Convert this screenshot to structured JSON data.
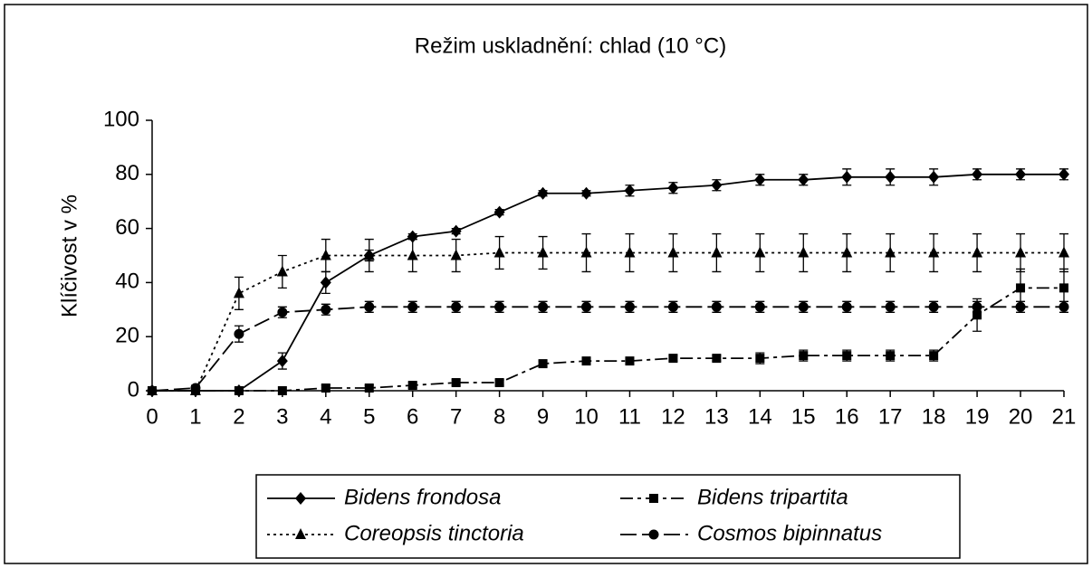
{
  "chart_data": {
    "type": "line",
    "title": "Režim uskladnění: chlad (10 °C)",
    "y_label": "Klíčivost v %",
    "x": [
      0,
      1,
      2,
      3,
      4,
      5,
      6,
      7,
      8,
      9,
      10,
      11,
      12,
      13,
      14,
      15,
      16,
      17,
      18,
      19,
      20,
      21
    ],
    "xlim": [
      0,
      21
    ],
    "xticks": [
      0,
      1,
      2,
      3,
      4,
      5,
      6,
      7,
      8,
      9,
      10,
      11,
      12,
      13,
      14,
      15,
      16,
      17,
      18,
      19,
      20,
      21
    ],
    "ylim": [
      0,
      100
    ],
    "yticks": [
      0,
      20,
      40,
      60,
      80,
      100
    ],
    "grid": false,
    "legend": "bottom",
    "series": [
      {
        "name": "Bidens frondosa",
        "color": "#000000",
        "dash": "solid",
        "marker": "diamond",
        "values": [
          0,
          0,
          0,
          11,
          40,
          50,
          57,
          59,
          66,
          73,
          73,
          74,
          75,
          76,
          78,
          78,
          79,
          79,
          79,
          80,
          80,
          80
        ],
        "errors": [
          0,
          0,
          1,
          3,
          4,
          2,
          1,
          1,
          1,
          1,
          1,
          2,
          2,
          2,
          2,
          2,
          3,
          3,
          3,
          2,
          2,
          2
        ]
      },
      {
        "name": "Bidens tripartita",
        "color": "#000000",
        "dash": "dashdot",
        "marker": "square",
        "values": [
          0,
          0,
          0,
          0,
          1,
          1,
          2,
          3,
          3,
          10,
          11,
          11,
          12,
          12,
          12,
          13,
          13,
          13,
          13,
          28,
          38,
          38
        ],
        "errors": [
          0,
          0,
          0,
          0,
          1,
          1,
          1,
          1,
          1,
          1,
          1,
          1,
          1,
          1,
          2,
          2,
          2,
          2,
          2,
          6,
          7,
          7
        ]
      },
      {
        "name": "Coreopsis tinctoria",
        "color": "#000000",
        "dash": "dotted",
        "marker": "triangle",
        "values": [
          0,
          0,
          36,
          44,
          50,
          50,
          50,
          50,
          51,
          51,
          51,
          51,
          51,
          51,
          51,
          51,
          51,
          51,
          51,
          51,
          51,
          51
        ],
        "errors": [
          0,
          0,
          6,
          6,
          6,
          6,
          6,
          6,
          6,
          6,
          7,
          7,
          7,
          7,
          7,
          7,
          7,
          7,
          7,
          7,
          7,
          7
        ]
      },
      {
        "name": "Cosmos bipinnatus",
        "color": "#000000",
        "dash": "longdash",
        "marker": "circle",
        "values": [
          0,
          1,
          21,
          29,
          30,
          31,
          31,
          31,
          31,
          31,
          31,
          31,
          31,
          31,
          31,
          31,
          31,
          31,
          31,
          31,
          31,
          31
        ],
        "errors": [
          0,
          1,
          3,
          2,
          2,
          2,
          2,
          2,
          2,
          2,
          2,
          2,
          2,
          2,
          2,
          2,
          2,
          2,
          2,
          2,
          2,
          2
        ]
      }
    ]
  }
}
